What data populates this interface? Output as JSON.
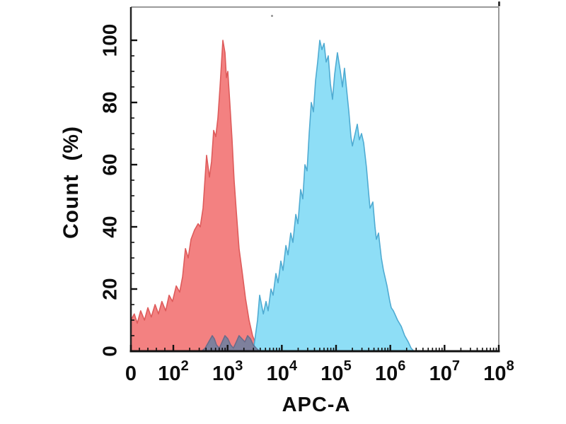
{
  "chart_data": {
    "type": "area",
    "subtype": "flow-cytometry-histogram-overlay",
    "title": "",
    "xlabel": "APC-A",
    "ylabel": "Count  (%)",
    "x_scale": "biexponential (linear 0-100, then log 1e2-1e8)",
    "x_axis": {
      "major_ticks": [
        {
          "label": "0",
          "value": 0
        },
        {
          "label": "10",
          "sup": "2",
          "value": 100
        },
        {
          "label": "10",
          "sup": "3",
          "value": 1000
        },
        {
          "label": "10",
          "sup": "4",
          "value": 10000
        },
        {
          "label": "10",
          "sup": "5",
          "value": 100000
        },
        {
          "label": "10",
          "sup": "6",
          "value": 1000000
        },
        {
          "label": "10",
          "sup": "7",
          "value": 10000000
        },
        {
          "label": "10",
          "sup": "8",
          "value": 100000000
        }
      ],
      "minor_linear": [
        20,
        40,
        60,
        80
      ],
      "minor_log_decades": [
        2,
        3,
        4,
        5,
        6,
        7
      ]
    },
    "y_axis": {
      "min": 0,
      "max": 100,
      "major_step": 20,
      "minor_step": 5,
      "tick_labels": [
        "0",
        "20",
        "40",
        "60",
        "80",
        "100"
      ]
    },
    "grid": false,
    "legend": "none",
    "series": [
      {
        "name": "red-histogram",
        "fill": "#F38181",
        "stroke": "#DE5B5B",
        "opacity": 1,
        "points": [
          [
            0,
            10
          ],
          [
            8,
            12
          ],
          [
            15,
            9
          ],
          [
            23,
            13
          ],
          [
            32,
            10
          ],
          [
            40,
            14
          ],
          [
            48,
            11
          ],
          [
            57,
            15
          ],
          [
            65,
            12
          ],
          [
            73,
            16
          ],
          [
            82,
            13
          ],
          [
            90,
            18
          ],
          [
            98,
            16
          ],
          [
            113,
            21
          ],
          [
            131,
            19
          ],
          [
            148,
            24
          ],
          [
            167,
            33
          ],
          [
            188,
            30
          ],
          [
            212,
            36
          ],
          [
            246,
            39
          ],
          [
            286,
            41
          ],
          [
            313,
            40
          ],
          [
            353,
            46
          ],
          [
            410,
            63
          ],
          [
            462,
            56
          ],
          [
            506,
            61
          ],
          [
            554,
            71
          ],
          [
            606,
            69
          ],
          [
            663,
            75
          ],
          [
            726,
            85
          ],
          [
            818,
            100
          ],
          [
            896,
            96
          ],
          [
            951,
            88
          ],
          [
            1010,
            90
          ],
          [
            1100,
            80
          ],
          [
            1210,
            68
          ],
          [
            1320,
            55
          ],
          [
            1450,
            45
          ],
          [
            1630,
            33
          ],
          [
            1840,
            26
          ],
          [
            2140,
            17
          ],
          [
            2490,
            10
          ],
          [
            2890,
            5
          ],
          [
            3360,
            2
          ],
          [
            3900,
            0
          ]
        ]
      },
      {
        "name": "blue-histogram",
        "fill": "#8EDEF6",
        "stroke": "#4FABD2",
        "opacity": 1,
        "points": [
          [
            2980,
            0
          ],
          [
            3260,
            5
          ],
          [
            3570,
            10
          ],
          [
            3900,
            18
          ],
          [
            4560,
            12
          ],
          [
            5110,
            16
          ],
          [
            5600,
            13
          ],
          [
            6310,
            20
          ],
          [
            6900,
            18
          ],
          [
            7790,
            25
          ],
          [
            8520,
            22
          ],
          [
            9610,
            29
          ],
          [
            10500,
            26
          ],
          [
            11900,
            34
          ],
          [
            13000,
            31
          ],
          [
            14600,
            38
          ],
          [
            16000,
            35
          ],
          [
            18100,
            44
          ],
          [
            19800,
            41
          ],
          [
            22300,
            52
          ],
          [
            24400,
            49
          ],
          [
            26700,
            60
          ],
          [
            29200,
            58
          ],
          [
            31900,
            70
          ],
          [
            35000,
            80
          ],
          [
            38200,
            77
          ],
          [
            41900,
            87
          ],
          [
            45800,
            93
          ],
          [
            50100,
            100
          ],
          [
            54800,
            97
          ],
          [
            60000,
            99
          ],
          [
            65700,
            93
          ],
          [
            71900,
            95
          ],
          [
            78600,
            86
          ],
          [
            86000,
            81
          ],
          [
            94200,
            89
          ],
          [
            106000,
            96
          ],
          [
            120000,
            90
          ],
          [
            131000,
            85
          ],
          [
            143000,
            91
          ],
          [
            157000,
            84
          ],
          [
            172000,
            77
          ],
          [
            188000,
            69
          ],
          [
            200000,
            66
          ],
          [
            225000,
            70
          ],
          [
            246000,
            73
          ],
          [
            269000,
            68
          ],
          [
            295000,
            70
          ],
          [
            323000,
            67
          ],
          [
            364000,
            59
          ],
          [
            398000,
            51
          ],
          [
            423000,
            46
          ],
          [
            477000,
            48
          ],
          [
            522000,
            40
          ],
          [
            554000,
            36
          ],
          [
            606000,
            38
          ],
          [
            684000,
            30
          ],
          [
            748000,
            26
          ],
          [
            869000,
            21
          ],
          [
            980000,
            16
          ],
          [
            1040000,
            14
          ],
          [
            1140000,
            13
          ],
          [
            1210000,
            12
          ],
          [
            1360000,
            10
          ],
          [
            1590000,
            8
          ],
          [
            1840000,
            5
          ],
          [
            2140000,
            3
          ],
          [
            2410000,
            1
          ],
          [
            2720000,
            0
          ]
        ]
      },
      {
        "name": "slate-histogram",
        "fill": "#72809F",
        "stroke": "#5C6A8C",
        "opacity": 0.9,
        "points": [
          [
            332,
            0
          ],
          [
            386,
            1
          ],
          [
            449,
            3
          ],
          [
            521,
            5
          ],
          [
            571,
            4
          ],
          [
            625,
            2
          ],
          [
            705,
            1
          ],
          [
            794,
            3
          ],
          [
            896,
            5
          ],
          [
            1010,
            4
          ],
          [
            1140,
            2
          ],
          [
            1280,
            1
          ],
          [
            1450,
            3
          ],
          [
            1630,
            5
          ],
          [
            1840,
            4
          ],
          [
            2080,
            3
          ],
          [
            2340,
            5
          ],
          [
            2640,
            4
          ],
          [
            2980,
            2
          ],
          [
            3360,
            1
          ],
          [
            3900,
            0
          ]
        ]
      }
    ]
  }
}
